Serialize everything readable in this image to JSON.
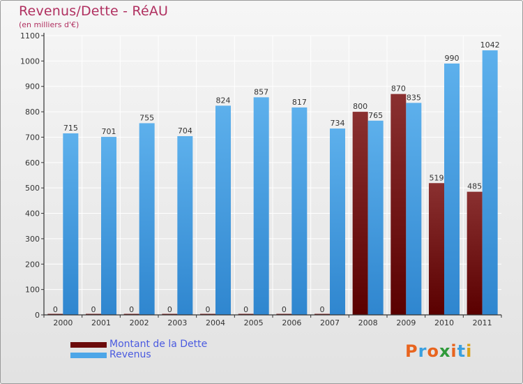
{
  "header": {
    "title": "Revenus/Dette - RéAU",
    "subtitle": "(en milliers d'€)"
  },
  "legend": {
    "items": [
      {
        "label": "Montant de la Dette",
        "color": "#6b0a0a"
      },
      {
        "label": "Revenus",
        "color": "#4da6e8"
      }
    ]
  },
  "logo": {
    "text": "Proxiti",
    "colors": [
      "#e8641e",
      "#3aa0e0",
      "#e8641e",
      "#2f9a3a",
      "#e8641e",
      "#3aa0e0",
      "#d9a21b"
    ]
  },
  "colors": {
    "dette_top": "#8a3030",
    "dette_bottom": "#5a0000",
    "revenus_top": "#5db0ec",
    "revenus_bottom": "#2f86cf",
    "label": "#333333",
    "axis": "#333333",
    "grid": "#ffffff"
  },
  "chart_data": {
    "type": "bar",
    "categories": [
      "2000",
      "2001",
      "2002",
      "2003",
      "2004",
      "2005",
      "2006",
      "2007",
      "2008",
      "2009",
      "2010",
      "2011"
    ],
    "series": [
      {
        "name": "Montant de la Dette",
        "values": [
          0,
          0,
          0,
          0,
          0,
          0,
          0,
          0,
          800,
          870,
          519,
          485
        ]
      },
      {
        "name": "Revenus",
        "values": [
          715,
          701,
          755,
          704,
          824,
          857,
          817,
          734,
          765,
          835,
          990,
          1042
        ]
      }
    ],
    "ylim": [
      0,
      1100
    ],
    "yticks": [
      0,
      100,
      200,
      300,
      400,
      500,
      600,
      700,
      800,
      900,
      1000,
      1100
    ],
    "grid": true,
    "legend_position": "bottom-left"
  }
}
